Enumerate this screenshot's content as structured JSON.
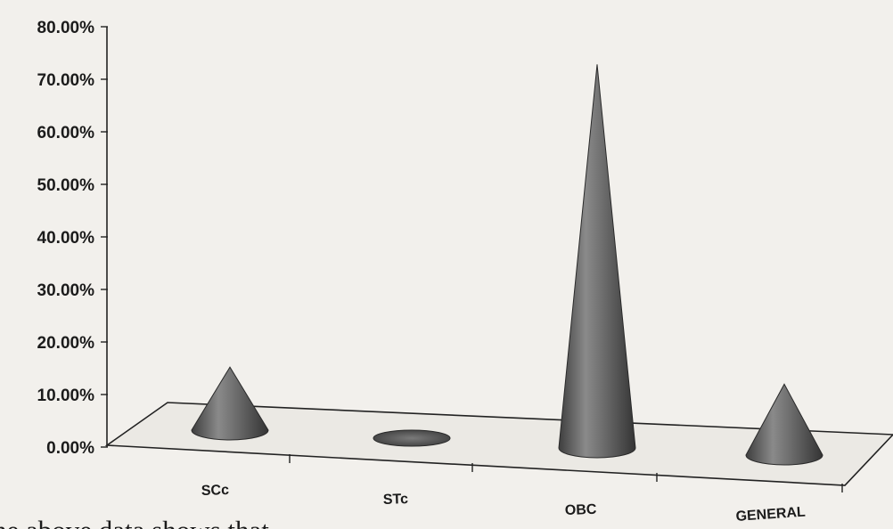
{
  "chart_data": {
    "type": "bar",
    "style": "3d-cone",
    "categories": [
      "SCc",
      "STc",
      "OBC",
      "GENERAL"
    ],
    "values": [
      12.0,
      0.3,
      73.0,
      13.5
    ],
    "y_ticks": [
      "0.00%",
      "10.00%",
      "20.00%",
      "30.00%",
      "40.00%",
      "50.00%",
      "60.00%",
      "70.00%",
      "80.00%"
    ],
    "ylim": [
      0,
      80
    ],
    "title": "",
    "xlabel": "",
    "ylabel": "",
    "grid": false,
    "legend": "none",
    "colors": {
      "cone": "#6a6a6a",
      "floor": "#ebe9e4",
      "axis": "#222222"
    }
  },
  "caption": {
    "text": "he above data shows that"
  }
}
